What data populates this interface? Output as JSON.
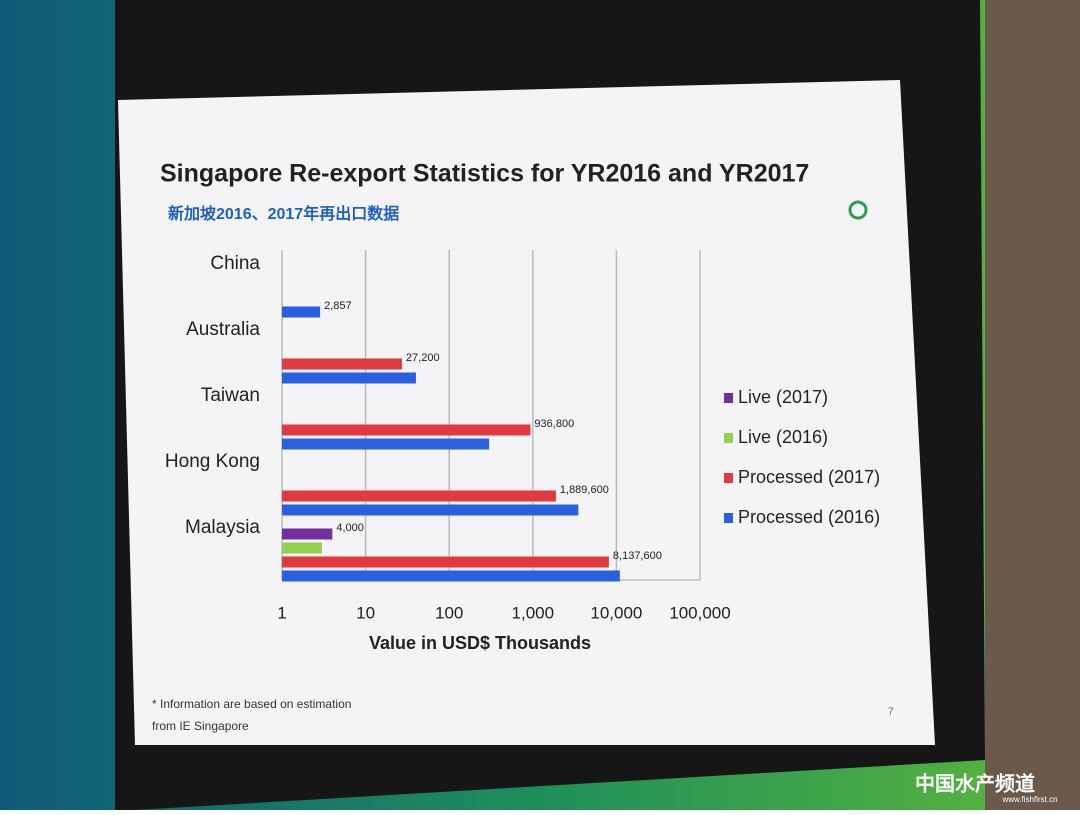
{
  "chart_data": {
    "type": "hbar",
    "title": "Singapore Re-export Statistics for YR2016 and YR2017",
    "subtitle": "新加坡2016、2017年再出口数据",
    "x_label": "Value in USD$ Thousands",
    "categories": [
      "China",
      "Australia",
      "Taiwan",
      "Hong Kong",
      "Malaysia"
    ],
    "series": [
      {
        "name": "Live (2017)",
        "color": "#7030a0",
        "values": [
          null,
          null,
          null,
          null,
          4
        ],
        "value_labels": [
          null,
          null,
          null,
          null,
          "4,000"
        ]
      },
      {
        "name": "Live (2016)",
        "color": "#92d050",
        "values": [
          null,
          null,
          null,
          null,
          3
        ],
        "value_labels": [
          null,
          null,
          null,
          null,
          null
        ]
      },
      {
        "name": "Processed (2017)",
        "color": "#e0393e",
        "values": [
          null,
          27.2,
          936.8,
          1889.6,
          8137.6
        ],
        "value_labels": [
          null,
          "27,200",
          "936,800",
          "1,889,600",
          "8,137,600"
        ]
      },
      {
        "name": "Processed (2016)",
        "color": "#2a5fe0",
        "values": [
          2.857,
          40,
          300,
          3500,
          11000
        ],
        "value_labels": [
          "2,857",
          null,
          null,
          null,
          null
        ]
      }
    ],
    "xlim": [
      1,
      100000
    ],
    "xticks": [
      1,
      10,
      100,
      {
        "value": 1000,
        "label": "1,000"
      },
      {
        "value": 10000,
        "label": "10,000"
      },
      {
        "value": 100000,
        "label": "100,000"
      }
    ],
    "log_scale": true,
    "grid": true,
    "legend_position": "right",
    "footnote": [
      "* Information are based on estimation",
      "from IE Singapore"
    ]
  },
  "slide": {
    "page_number": "7",
    "watermark": "中国水产频道",
    "watermark_url": "www.fishfirst.cn"
  }
}
